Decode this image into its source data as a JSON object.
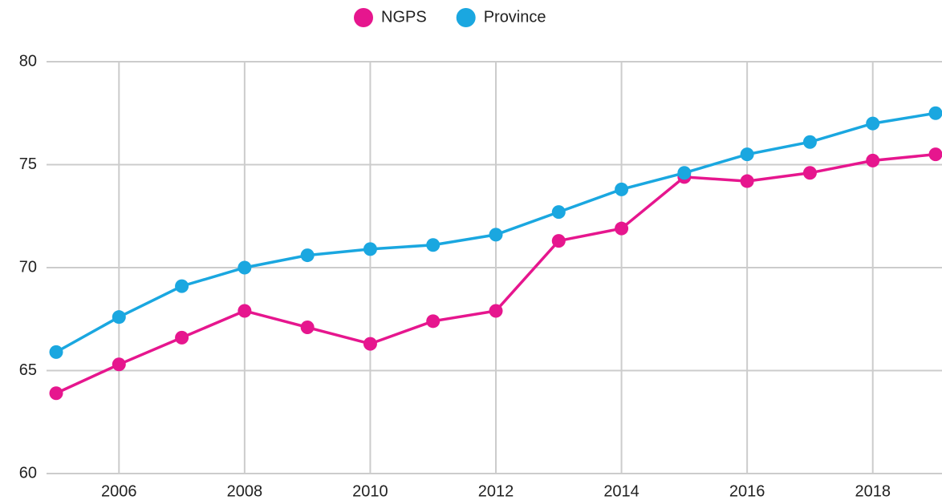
{
  "chart_data": {
    "type": "line",
    "x": [
      2005,
      2006,
      2007,
      2008,
      2009,
      2010,
      2011,
      2012,
      2013,
      2014,
      2015,
      2016,
      2017,
      2018,
      2019
    ],
    "series": [
      {
        "name": "NGPS",
        "color": "#e6168e",
        "values": [
          63.9,
          65.3,
          66.6,
          67.9,
          67.1,
          66.3,
          67.4,
          67.9,
          71.3,
          71.9,
          74.4,
          74.2,
          74.6,
          75.2,
          75.5
        ]
      },
      {
        "name": "Province",
        "color": "#1aa7e0",
        "values": [
          65.9,
          67.6,
          69.1,
          70.0,
          70.6,
          70.9,
          71.1,
          71.6,
          72.7,
          73.8,
          74.6,
          75.5,
          76.1,
          77.0,
          77.5
        ]
      }
    ],
    "xlim": [
      2005,
      2019
    ],
    "xticks": [
      2006,
      2008,
      2010,
      2012,
      2014,
      2016,
      2018
    ],
    "ylim": [
      60,
      80
    ],
    "yticks": [
      60,
      65,
      70,
      75,
      80
    ],
    "grid": true,
    "legend": "top"
  }
}
